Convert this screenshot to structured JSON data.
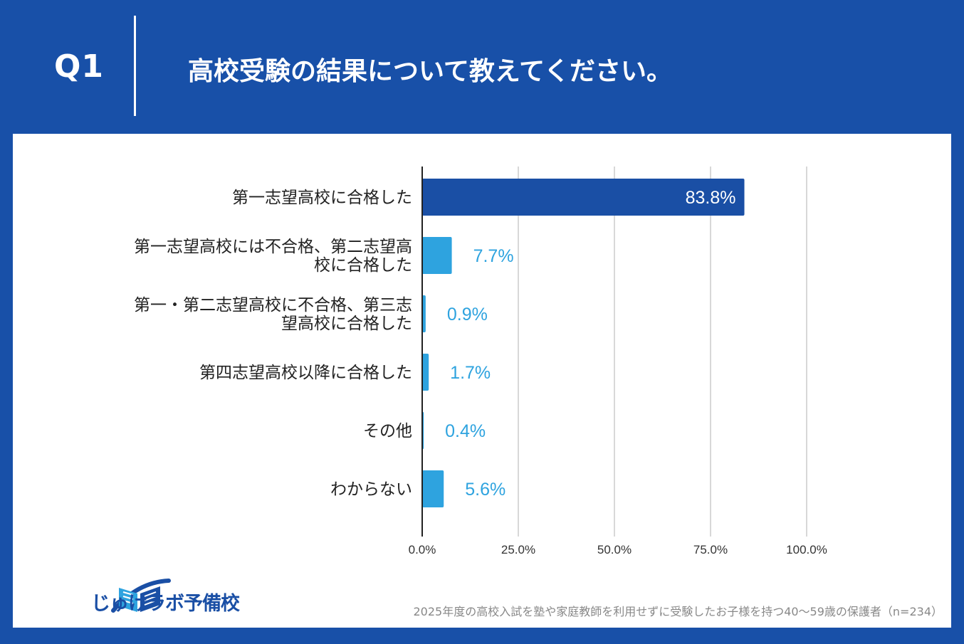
{
  "header": {
    "question_number": "Q1",
    "question_text": "高校受験の結果について教えてください。"
  },
  "footer": {
    "brand": "じゅけラボ予備校",
    "note": "2025年度の高校入試を塾や家庭教師を利用せずに受験したお子様を持つ40〜59歳の保護者（n=234）"
  },
  "colors": {
    "header_bg": "#1850a8",
    "primary_bar": "#1a4fa5",
    "secondary_bar": "#2ea3df",
    "value_label": "#2ea3df",
    "grid": "#cccccc"
  },
  "chart_data": {
    "type": "bar",
    "orientation": "horizontal",
    "categories": [
      [
        "第一志望高校に合格した"
      ],
      [
        "第一志望高校には不合格、第二志望高",
        "校に合格した"
      ],
      [
        "第一・第二志望高校に不合格、第三志",
        "望高校に合格した"
      ],
      [
        "第四志望高校以降に合格した"
      ],
      [
        "その他"
      ],
      [
        "わからない"
      ]
    ],
    "values": [
      83.8,
      7.7,
      0.9,
      1.7,
      0.4,
      5.6
    ],
    "value_labels": [
      "83.8%",
      "7.7%",
      "0.9%",
      "1.7%",
      "0.4%",
      "5.6%"
    ],
    "xlim": [
      0,
      100
    ],
    "x_ticks": [
      "0.0%",
      "25.0%",
      "50.0%",
      "75.0%",
      "100.0%"
    ],
    "grid": true,
    "highlight_index": 0
  }
}
